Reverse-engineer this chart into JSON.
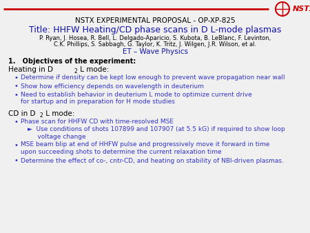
{
  "header_line": "NSTX EXPERIMENTAL PROPOSAL - OP-XP-825",
  "title": "Title: HHFW Heating/CD phase scans in D L-mode plasmas",
  "authors_line1": "P. Ryan, J. Hosea, R. Bell, L. Delgado-Aparicio, S. Kubota, B. LeBlanc, F. Levinton,",
  "authors_line2": "C.K. Phillips, S. Sabbagh, G. Taylor, K. Tritz, J. Wilgen, J.R. Wilson, et al.",
  "et_line": "ET – Wave Physics",
  "section": "1.   Objectives of the experiment:",
  "blue_color": "#3333CC",
  "dark_blue": "#1010AA",
  "red_color": "#CC0000",
  "background_color": "#F0F0F0",
  "logo_text": "NSTX",
  "heating_header_main": "Heating in D",
  "heating_header_sub": "2",
  "heating_header_tail": " L mode:",
  "cd_header_main": "CD in D",
  "cd_header_sub": "2",
  "cd_header_tail": " L mode:",
  "heating_bullets": [
    "Determine if density can be kept low enough to prevent wave propagation near wall",
    "Show how efficiency depends on wavelength in deuterium",
    "Need to establish behavior in deuterium L mode to optimize current drive\nfor startup and in preparation for H mode studies"
  ],
  "cd_bullet1": "Phase scan for HHFW CD with time-resolved MSE",
  "cd_sub1": "►  Use conditions of shots 107899 and 107907 (at 5.5 kG) if required to show loop\n     voltage change",
  "cd_bullet2": "MSE beam blip at end of HHFW pulse and progressively move it forward in time\nupon succeeding shots to determine the current relaxation time",
  "cd_bullet3": "Determine the effect of co-, cntr-CD, and heating on stability of NBI-driven plasmas."
}
